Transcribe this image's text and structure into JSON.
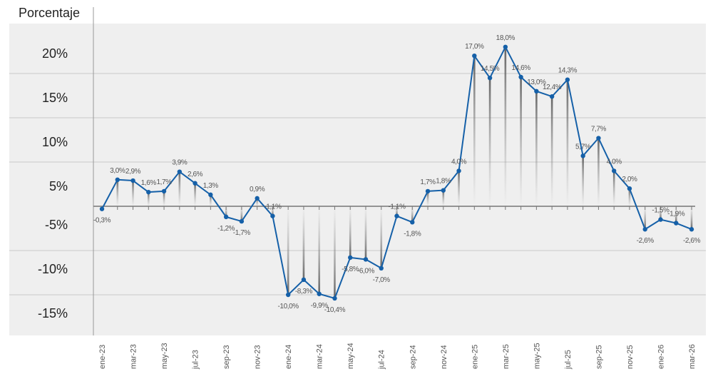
{
  "chart_data": {
    "type": "line",
    "ylabel": "Porcentaje",
    "ylim": [
      -15,
      20
    ],
    "grid": true,
    "yticks": [
      {
        "value": 20,
        "label": "20%"
      },
      {
        "value": 15,
        "label": "15%"
      },
      {
        "value": 10,
        "label": "10%"
      },
      {
        "value": 5,
        "label": "5%"
      },
      {
        "value": -5,
        "label": "-5%"
      },
      {
        "value": -10,
        "label": "-10%"
      },
      {
        "value": -15,
        "label": "-15%"
      }
    ],
    "x": [
      "ene-23",
      "feb-23",
      "mar-23",
      "abr-23",
      "may-23",
      "jun-23",
      "jul-23",
      "ago-23",
      "sep-23",
      "oct-23",
      "nov-23",
      "dic-23",
      "ene-24",
      "feb-24",
      "mar-24",
      "abr-24",
      "may-24",
      "jun-24",
      "jul-24",
      "ago-24",
      "sep-24",
      "oct-24",
      "nov-24",
      "dic-24",
      "ene-25",
      "feb-25",
      "mar-25",
      "abr-25",
      "may-25",
      "jun-25",
      "jul-25",
      "ago-25",
      "sep-25",
      "oct-25",
      "nov-25",
      "dic-25",
      "ene-26",
      "feb-26",
      "mar-26"
    ],
    "xtick_labels": [
      "ene-23",
      "mar-23",
      "may-23",
      "jul-23",
      "sep-23",
      "nov-23",
      "ene-24",
      "mar-24",
      "may-24",
      "jul-24",
      "sep-24",
      "nov-24",
      "ene-25",
      "mar-25",
      "may-25",
      "jul-25",
      "sep-25",
      "nov-25",
      "ene-26",
      "mar-26"
    ],
    "values": [
      -0.3,
      3.0,
      2.9,
      1.6,
      1.7,
      3.9,
      2.6,
      1.3,
      -1.2,
      -1.7,
      0.9,
      -1.1,
      -10.0,
      -8.3,
      -9.9,
      -10.4,
      -5.8,
      -6.0,
      -7.0,
      -1.1,
      -1.8,
      1.7,
      1.8,
      4.0,
      17.0,
      14.5,
      18.0,
      14.6,
      13.0,
      12.4,
      14.3,
      5.7,
      7.7,
      4.0,
      2.0,
      -2.6,
      -1.5,
      -1.9,
      -2.6
    ],
    "data_labels": [
      "-0,3%",
      "3,0%",
      "2,9%",
      "1,6%",
      "1,7%",
      "3,9%",
      "2,6%",
      "1,3%",
      "-1,2%",
      "-1,7%",
      "0,9%",
      "-1,1%",
      "-10,0%",
      "-8,3%",
      "-9,9%",
      "-10,4%",
      "-5,8%",
      "-6,0%",
      "-7,0%",
      "-1,1%",
      "-1,8%",
      "1,7%",
      "1,8%",
      "4,0%",
      "17,0%",
      "14,5%",
      "18,0%",
      "14,6%",
      "13,0%",
      "12,4%",
      "14,3%",
      "5,7%",
      "7,7%",
      "4,0%",
      "2,0%",
      "-2,6%",
      "-1,5%",
      "-1,9%",
      "-2,6%"
    ],
    "colors": {
      "line": "#1560a8",
      "background": "#efefef",
      "grid": "#c8c8c8",
      "axis": "#777777"
    }
  }
}
